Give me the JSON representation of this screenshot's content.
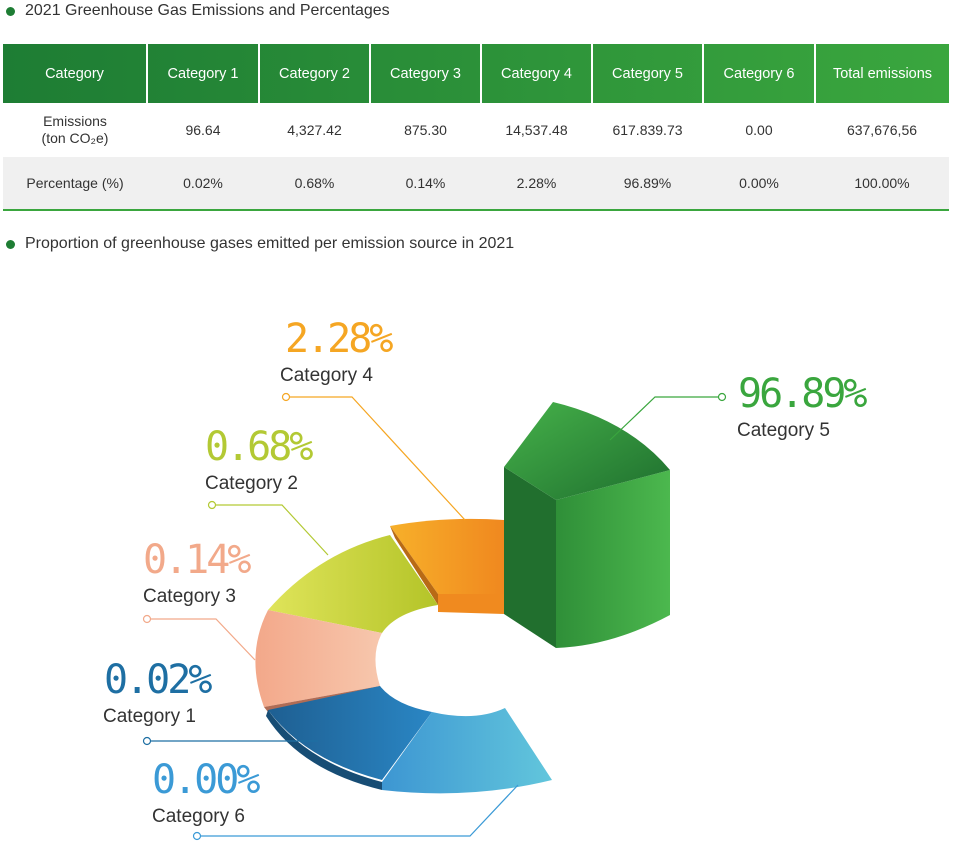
{
  "headings": {
    "table": "2021 Greenhouse Gas Emissions and Percentages",
    "chart": "Proportion of greenhouse gases emitted per emission source in 2021"
  },
  "table": {
    "headers": [
      "Category",
      "Category 1",
      "Category 2",
      "Category 3",
      "Category 4",
      "Category 5",
      "Category 6",
      "Total emissions"
    ],
    "emissions_label_line1": "Emissions",
    "emissions_label_line2": "(ton CO₂e)",
    "emissions": [
      "96.64",
      "4,327.42",
      "875.30",
      "14,537.48",
      "617.839.73",
      "0.00",
      "637,676,56"
    ],
    "percentage_label": "Percentage (%)",
    "percentages": [
      "0.02%",
      "0.68%",
      "0.14%",
      "2.28%",
      "96.89%",
      "0.00%",
      "100.00%"
    ]
  },
  "chart_data": {
    "type": "pie",
    "title": "Proportion of greenhouse gases emitted per emission source in 2021",
    "slices": [
      {
        "label": "Category 5",
        "value": 96.89,
        "display": "96.89%",
        "color": "#3aa63e"
      },
      {
        "label": "Category 4",
        "value": 2.28,
        "display": "2.28%",
        "color": "#f5a623"
      },
      {
        "label": "Category 2",
        "value": 0.68,
        "display": "0.68%",
        "color": "#b3c934"
      },
      {
        "label": "Category 3",
        "value": 0.14,
        "display": "0.14%",
        "color": "#f2a98a"
      },
      {
        "label": "Category 1",
        "value": 0.02,
        "display": "0.02%",
        "color": "#1e6fa3"
      },
      {
        "label": "Category 6",
        "value": 0.0,
        "display": "0.00%",
        "color": "#3b9ad6"
      }
    ]
  },
  "colors": {
    "header_dark": "#1e7d34",
    "header_light": "#3aa63e",
    "bullet": "#1e7d34"
  }
}
